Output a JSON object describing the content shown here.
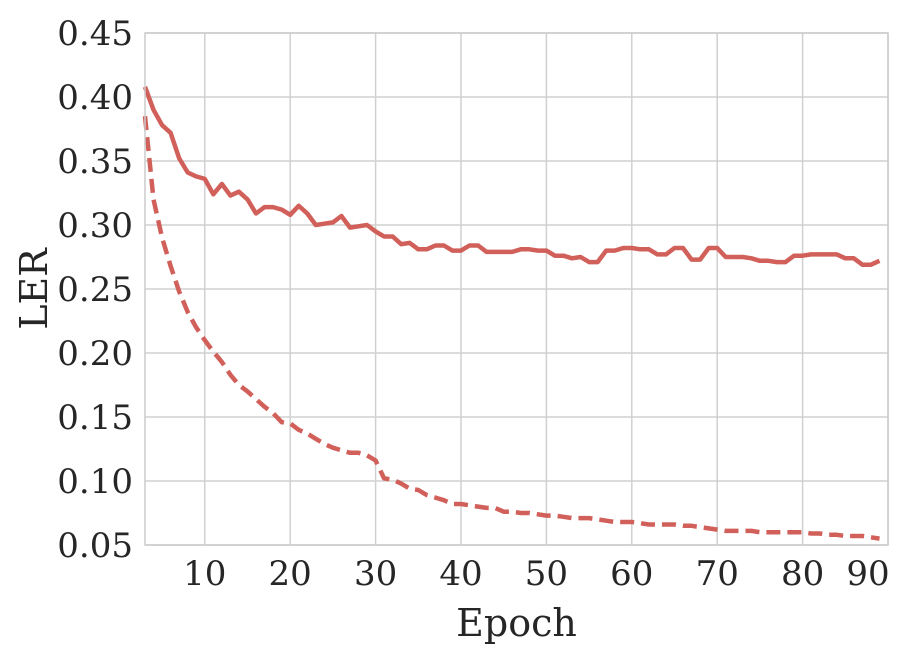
{
  "chart_data": {
    "type": "line",
    "xlabel": "Epoch",
    "ylabel": "LER",
    "xlim": [
      3,
      90
    ],
    "ylim": [
      0.05,
      0.45
    ],
    "xticks": [
      10,
      20,
      30,
      40,
      50,
      60,
      70,
      80,
      90
    ],
    "yticks": [
      0.05,
      0.1,
      0.15,
      0.2,
      0.25,
      0.3,
      0.35,
      0.4,
      0.45
    ],
    "xtick_labels": [
      "10",
      "20",
      "30",
      "40",
      "50",
      "60",
      "70",
      "80",
      "90"
    ],
    "ytick_labels": [
      "0.05",
      "0.10",
      "0.15",
      "0.20",
      "0.25",
      "0.30",
      "0.35",
      "0.40",
      "0.45"
    ],
    "grid": true,
    "legend": "none",
    "series": [
      {
        "style": "solid",
        "color": "#d1605a",
        "x": [
          3,
          4,
          5,
          6,
          7,
          8,
          9,
          10,
          11,
          12,
          13,
          14,
          15,
          16,
          17,
          18,
          19,
          20,
          21,
          22,
          23,
          24,
          25,
          26,
          27,
          28,
          29,
          30,
          31,
          32,
          33,
          34,
          35,
          36,
          37,
          38,
          39,
          40,
          41,
          42,
          43,
          44,
          45,
          46,
          47,
          48,
          49,
          50,
          51,
          52,
          53,
          54,
          55,
          56,
          57,
          58,
          59,
          60,
          61,
          62,
          63,
          64,
          65,
          66,
          67,
          68,
          69,
          70,
          71,
          72,
          73,
          74,
          75,
          76,
          77,
          78,
          79,
          80,
          81,
          82,
          83,
          84,
          85,
          86,
          87,
          88,
          89
        ],
        "y": [
          0.408,
          0.39,
          0.378,
          0.372,
          0.352,
          0.341,
          0.338,
          0.336,
          0.324,
          0.332,
          0.323,
          0.326,
          0.32,
          0.309,
          0.314,
          0.314,
          0.312,
          0.308,
          0.315,
          0.309,
          0.3,
          0.301,
          0.302,
          0.307,
          0.298,
          0.299,
          0.3,
          0.295,
          0.291,
          0.291,
          0.285,
          0.286,
          0.281,
          0.281,
          0.284,
          0.284,
          0.28,
          0.28,
          0.284,
          0.284,
          0.279,
          0.279,
          0.279,
          0.279,
          0.281,
          0.281,
          0.28,
          0.28,
          0.276,
          0.276,
          0.274,
          0.275,
          0.271,
          0.271,
          0.28,
          0.28,
          0.282,
          0.282,
          0.281,
          0.281,
          0.277,
          0.277,
          0.282,
          0.282,
          0.273,
          0.273,
          0.282,
          0.282,
          0.275,
          0.275,
          0.275,
          0.274,
          0.272,
          0.272,
          0.271,
          0.271,
          0.276,
          0.276,
          0.277,
          0.277,
          0.277,
          0.277,
          0.274,
          0.274,
          0.269,
          0.269,
          0.272
        ]
      },
      {
        "style": "dashed",
        "color": "#d1605a",
        "x": [
          3,
          4,
          5,
          6,
          7,
          8,
          9,
          10,
          11,
          12,
          13,
          14,
          15,
          16,
          17,
          18,
          19,
          20,
          21,
          22,
          23,
          24,
          25,
          26,
          27,
          28,
          29,
          30,
          31,
          32,
          33,
          34,
          35,
          36,
          37,
          38,
          39,
          40,
          41,
          42,
          43,
          44,
          45,
          46,
          47,
          48,
          49,
          50,
          51,
          52,
          53,
          54,
          55,
          56,
          57,
          58,
          59,
          60,
          61,
          62,
          63,
          64,
          65,
          66,
          67,
          68,
          69,
          70,
          71,
          72,
          73,
          74,
          75,
          76,
          77,
          78,
          79,
          80,
          81,
          82,
          83,
          84,
          85,
          86,
          87,
          88,
          89
        ],
        "y": [
          0.385,
          0.32,
          0.29,
          0.268,
          0.248,
          0.232,
          0.22,
          0.21,
          0.201,
          0.193,
          0.183,
          0.175,
          0.17,
          0.164,
          0.158,
          0.153,
          0.146,
          0.145,
          0.14,
          0.137,
          0.133,
          0.129,
          0.126,
          0.124,
          0.122,
          0.122,
          0.12,
          0.116,
          0.102,
          0.101,
          0.098,
          0.094,
          0.093,
          0.089,
          0.087,
          0.085,
          0.082,
          0.082,
          0.081,
          0.08,
          0.079,
          0.079,
          0.076,
          0.076,
          0.075,
          0.075,
          0.074,
          0.073,
          0.073,
          0.072,
          0.071,
          0.071,
          0.071,
          0.07,
          0.069,
          0.068,
          0.068,
          0.068,
          0.067,
          0.066,
          0.066,
          0.066,
          0.066,
          0.065,
          0.065,
          0.064,
          0.063,
          0.062,
          0.061,
          0.061,
          0.061,
          0.061,
          0.06,
          0.06,
          0.06,
          0.06,
          0.06,
          0.06,
          0.059,
          0.059,
          0.058,
          0.058,
          0.057,
          0.057,
          0.057,
          0.056,
          0.055
        ]
      }
    ]
  }
}
